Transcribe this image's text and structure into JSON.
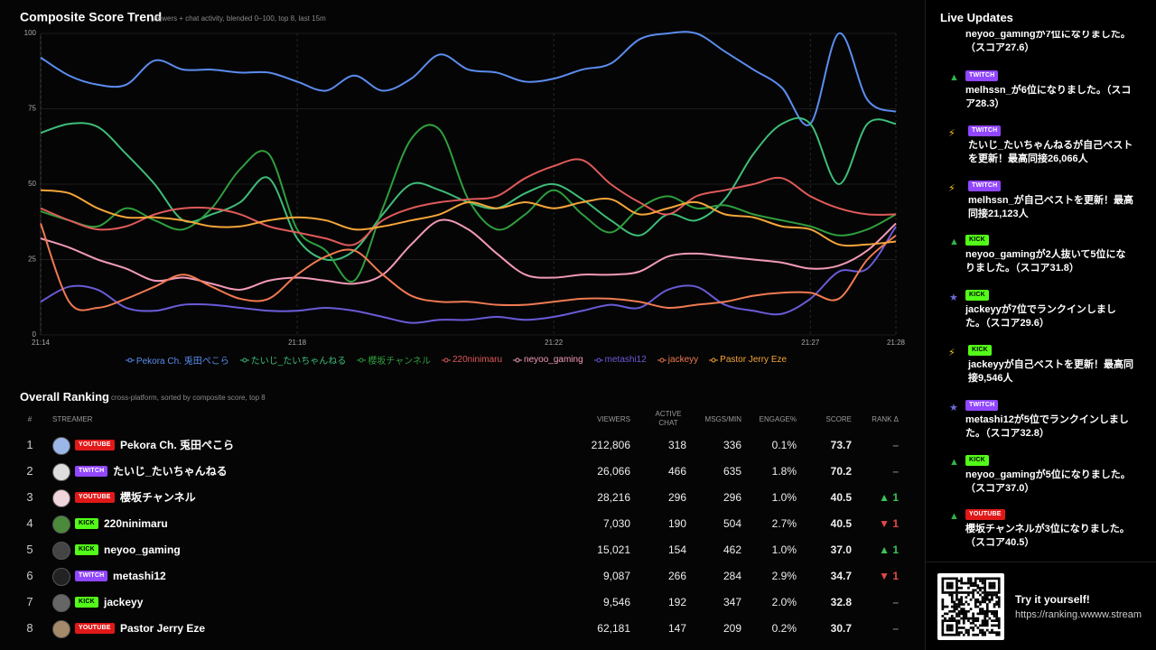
{
  "chart_data": {
    "type": "line",
    "title": "Composite Score Trend",
    "subtitle": "viewers + chat activity, blended 0–100, top 8, last 15m",
    "categories": [
      "21:14",
      null,
      null,
      null,
      null,
      null,
      null,
      null,
      null,
      "21:18",
      null,
      null,
      null,
      null,
      null,
      null,
      null,
      null,
      "21:22",
      null,
      null,
      null,
      null,
      null,
      null,
      null,
      null,
      "21:27",
      null,
      null,
      "21:28"
    ],
    "ylim": [
      0,
      100
    ],
    "yticks": [
      0,
      25,
      50,
      75,
      100
    ],
    "grid": true,
    "series": [
      {
        "name": "Pekora Ch. 兎田ぺこら",
        "color": "#5b8def",
        "values": [
          92,
          86,
          83,
          83,
          91,
          88,
          88,
          87,
          87,
          84,
          81,
          86,
          81,
          85,
          93,
          88,
          87,
          84,
          85,
          88,
          90,
          98,
          100,
          100,
          94,
          88,
          82,
          70,
          100,
          78,
          74
        ]
      },
      {
        "name": "たいじ_たいちゃんねる",
        "color": "#3ebd78",
        "values": [
          67,
          70,
          69,
          60,
          50,
          38,
          40,
          44,
          52,
          32,
          25,
          28,
          40,
          50,
          48,
          44,
          42,
          47,
          50,
          45,
          38,
          33,
          40,
          38,
          45,
          60,
          70,
          70,
          50,
          70,
          70
        ]
      },
      {
        "name": "櫻坂チャンネル",
        "color": "#2f9e3c",
        "values": [
          41,
          38,
          36,
          42,
          38,
          35,
          42,
          55,
          60,
          35,
          28,
          18,
          42,
          65,
          68,
          45,
          35,
          40,
          48,
          40,
          34,
          42,
          46,
          42,
          43,
          40,
          38,
          36,
          33,
          35,
          40
        ]
      },
      {
        "name": "220ninimaru",
        "color": "#e05a5a",
        "values": [
          42,
          38,
          35,
          36,
          40,
          42,
          42,
          40,
          36,
          34,
          32,
          30,
          38,
          42,
          44,
          45,
          46,
          52,
          56,
          58,
          50,
          44,
          40,
          46,
          48,
          50,
          52,
          46,
          42,
          40,
          40
        ]
      },
      {
        "name": "neyoo_gaming",
        "color": "#f29ab8",
        "values": [
          32,
          29,
          25,
          22,
          18,
          19,
          17,
          15,
          18,
          19,
          18,
          17,
          20,
          30,
          38,
          35,
          27,
          20,
          19,
          20,
          20,
          21,
          26,
          27,
          26,
          25,
          24,
          22,
          23,
          28,
          37
        ]
      },
      {
        "name": "metashi12",
        "color": "#6a5bd8",
        "values": [
          11,
          16,
          15,
          9,
          8,
          10,
          10,
          9,
          8,
          8,
          9,
          8,
          6,
          4,
          5,
          5,
          6,
          5,
          6,
          8,
          10,
          9,
          15,
          16,
          10,
          8,
          7,
          12,
          21,
          22,
          36
        ]
      },
      {
        "name": "jackeyy",
        "color": "#f07a52",
        "values": [
          37,
          11,
          9,
          12,
          16,
          20,
          16,
          12,
          12,
          20,
          26,
          28,
          20,
          13,
          11,
          11,
          10,
          10,
          11,
          12,
          12,
          11,
          9,
          10,
          11,
          13,
          14,
          14,
          12,
          25,
          33
        ]
      },
      {
        "name": "Pastor Jerry Eze",
        "color": "#f5a53a",
        "values": [
          48,
          47,
          42,
          39,
          39,
          38,
          36,
          36,
          38,
          39,
          38,
          35,
          36,
          38,
          40,
          44,
          42,
          44,
          42,
          44,
          45,
          40,
          42,
          44,
          40,
          39,
          36,
          35,
          30,
          30,
          31
        ]
      }
    ]
  },
  "ranking": {
    "title": "Overall Ranking",
    "subtitle": "cross-platform, sorted by composite score, top 8",
    "columns": [
      "#",
      "STREAMER",
      "VIEWERS",
      "ACTIVE CHAT",
      "MSGS/MIN",
      "ENGAGE%",
      "SCORE",
      "RANK Δ"
    ],
    "rows": [
      {
        "rank": "1",
        "platform": "YOUTUBE",
        "name": "Pekora Ch. 兎田ぺこら",
        "viewers": "212,806",
        "active_chat": "318",
        "msgs": "336",
        "engage": "0.1%",
        "score": "73.7",
        "delta": "–"
      },
      {
        "rank": "2",
        "platform": "TWITCH",
        "name": "たいじ_たいちゃんねる",
        "viewers": "26,066",
        "active_chat": "466",
        "msgs": "635",
        "engage": "1.8%",
        "score": "70.2",
        "delta": "–"
      },
      {
        "rank": "3",
        "platform": "YOUTUBE",
        "name": "櫻坂チャンネル",
        "viewers": "28,216",
        "active_chat": "296",
        "msgs": "296",
        "engage": "1.0%",
        "score": "40.5",
        "delta": "▲ 1"
      },
      {
        "rank": "4",
        "platform": "KICK",
        "name": "220ninimaru",
        "viewers": "7,030",
        "active_chat": "190",
        "msgs": "504",
        "engage": "2.7%",
        "score": "40.5",
        "delta": "▼ 1"
      },
      {
        "rank": "5",
        "platform": "KICK",
        "name": "neyoo_gaming",
        "viewers": "15,021",
        "active_chat": "154",
        "msgs": "462",
        "engage": "1.0%",
        "score": "37.0",
        "delta": "▲ 1"
      },
      {
        "rank": "6",
        "platform": "TWITCH",
        "name": "metashi12",
        "viewers": "9,087",
        "active_chat": "266",
        "msgs": "284",
        "engage": "2.9%",
        "score": "34.7",
        "delta": "▼ 1"
      },
      {
        "rank": "7",
        "platform": "KICK",
        "name": "jackeyy",
        "viewers": "9,546",
        "active_chat": "192",
        "msgs": "347",
        "engage": "2.0%",
        "score": "32.8",
        "delta": "–"
      },
      {
        "rank": "8",
        "platform": "YOUTUBE",
        "name": "Pastor Jerry Eze",
        "viewers": "62,181",
        "active_chat": "147",
        "msgs": "209",
        "engage": "0.2%",
        "score": "30.7",
        "delta": "–"
      }
    ]
  },
  "live": {
    "title": "Live Updates",
    "items": [
      {
        "text": "neyoo_gamingが7位になりました。（スコア27.6）"
      },
      {
        "icon": "▲",
        "platform": "TWITCH",
        "text": "melhssn_が6位になりました。（スコア28.3）"
      },
      {
        "icon": "⚡",
        "platform": "TWITCH",
        "text": "たいじ_たいちゃんねるが自己ベストを更新！最高同接26,066人"
      },
      {
        "icon": "⚡",
        "platform": "TWITCH",
        "text": "melhssn_が自己ベストを更新！最高同接21,123人"
      },
      {
        "icon": "▲",
        "platform": "KICK",
        "text": "neyoo_gamingが2人抜いて5位になりました。（スコア31.8）"
      },
      {
        "icon": "★",
        "platform": "KICK",
        "text": "jackeyyが7位でランクインしました。（スコア29.6）"
      },
      {
        "icon": "⚡",
        "platform": "KICK",
        "text": "jackeyyが自己ベストを更新！最高同接9,546人"
      },
      {
        "icon": "★",
        "platform": "TWITCH",
        "text": "metashi12が5位でランクインしました。（スコア32.8）"
      },
      {
        "icon": "▲",
        "platform": "KICK",
        "text": "neyoo_gamingが5位になりました。（スコア37.0）"
      },
      {
        "icon": "▲",
        "platform": "YOUTUBE",
        "text": "櫻坂チャンネルが3位になりました。（スコア40.5）"
      }
    ]
  },
  "footer": {
    "cta": "Try it yourself!",
    "url": "https://ranking.wwww.stream"
  }
}
